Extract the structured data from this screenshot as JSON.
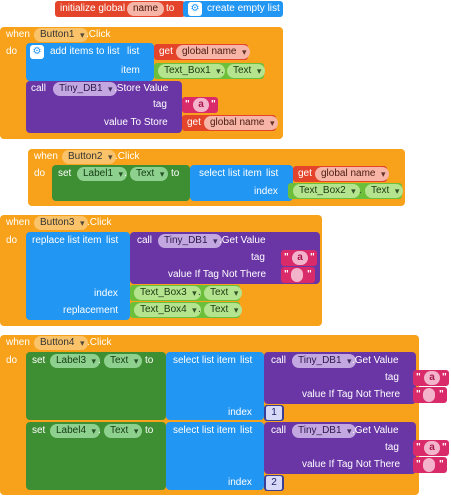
{
  "init": {
    "label": "initialize global",
    "var_name": "name",
    "to": "to",
    "empty_list": "create empty list"
  },
  "common": {
    "when": "when",
    "do": "do",
    "click": ".Click",
    "dot": ".",
    "to": "to",
    "get": "get",
    "call": "call",
    "set": "set",
    "list": "list",
    "tag": "tag",
    "index": "index",
    "get_value": ".Get Value",
    "store_value": ".Store Value",
    "value_if_tag_not_there": "value If Tag Not There",
    "value_to_store": "value To Store",
    "global_name": "global name",
    "tiny_db": "Tiny_DB1",
    "text": "Text",
    "tag_value": "a",
    "empty_string": "",
    "quote": "\""
  },
  "block1": {
    "button": "Button1",
    "add_items": "add items to list",
    "item": "item",
    "text_box": "Text_Box1"
  },
  "block2": {
    "button": "Button2",
    "label": "Label1",
    "select_item": "select list item",
    "text_box": "Text_Box2"
  },
  "block3": {
    "button": "Button3",
    "replace_item": "replace list item",
    "replacement": "replacement",
    "text_box_index": "Text_Box3",
    "text_box_repl": "Text_Box4"
  },
  "block4": {
    "button": "Button4",
    "select_item": "select list item",
    "label_a": "Label3",
    "label_b": "Label4",
    "index_a": "1",
    "index_b": "2"
  }
}
